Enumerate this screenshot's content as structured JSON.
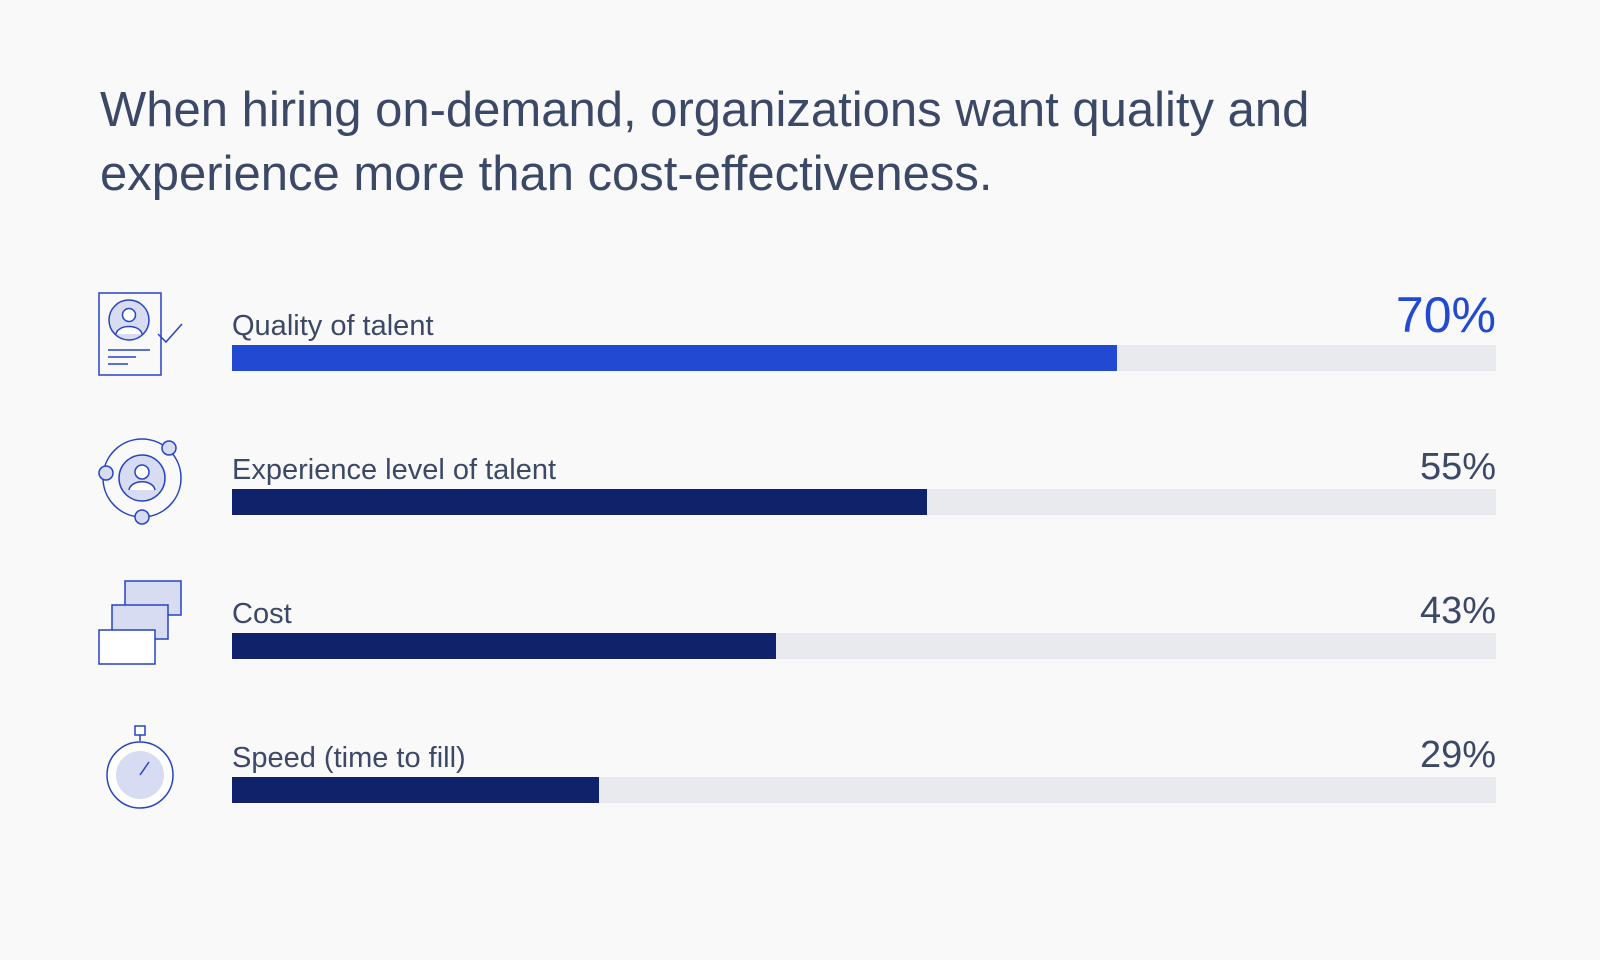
{
  "title_lines": [
    "When hiring on-demand, organizations want quality and",
    "experience more than cost-effectiveness."
  ],
  "colors": {
    "highlight": "#2149d1",
    "bar": "#10226a",
    "track": "#e9eaee",
    "text": "#3c4966",
    "icon_stroke": "#2643c4",
    "icon_fill": "#d7dcf3"
  },
  "chart_data": {
    "type": "bar",
    "orientation": "horizontal",
    "title": "When hiring on-demand, organizations want quality and experience more than cost-effectiveness.",
    "categories": [
      "Quality of talent",
      "Experience level of talent",
      "Cost",
      "Speed (time to fill)"
    ],
    "values": [
      70,
      55,
      43,
      29
    ],
    "value_labels": [
      "70%",
      "55%",
      "43%",
      "29%"
    ],
    "icons": [
      "profile-check-icon",
      "orbit-person-icon",
      "stacked-cards-icon",
      "stopwatch-icon"
    ],
    "highlight_index": 0,
    "xlim": [
      0,
      100
    ],
    "grid": false,
    "legend": "none"
  }
}
